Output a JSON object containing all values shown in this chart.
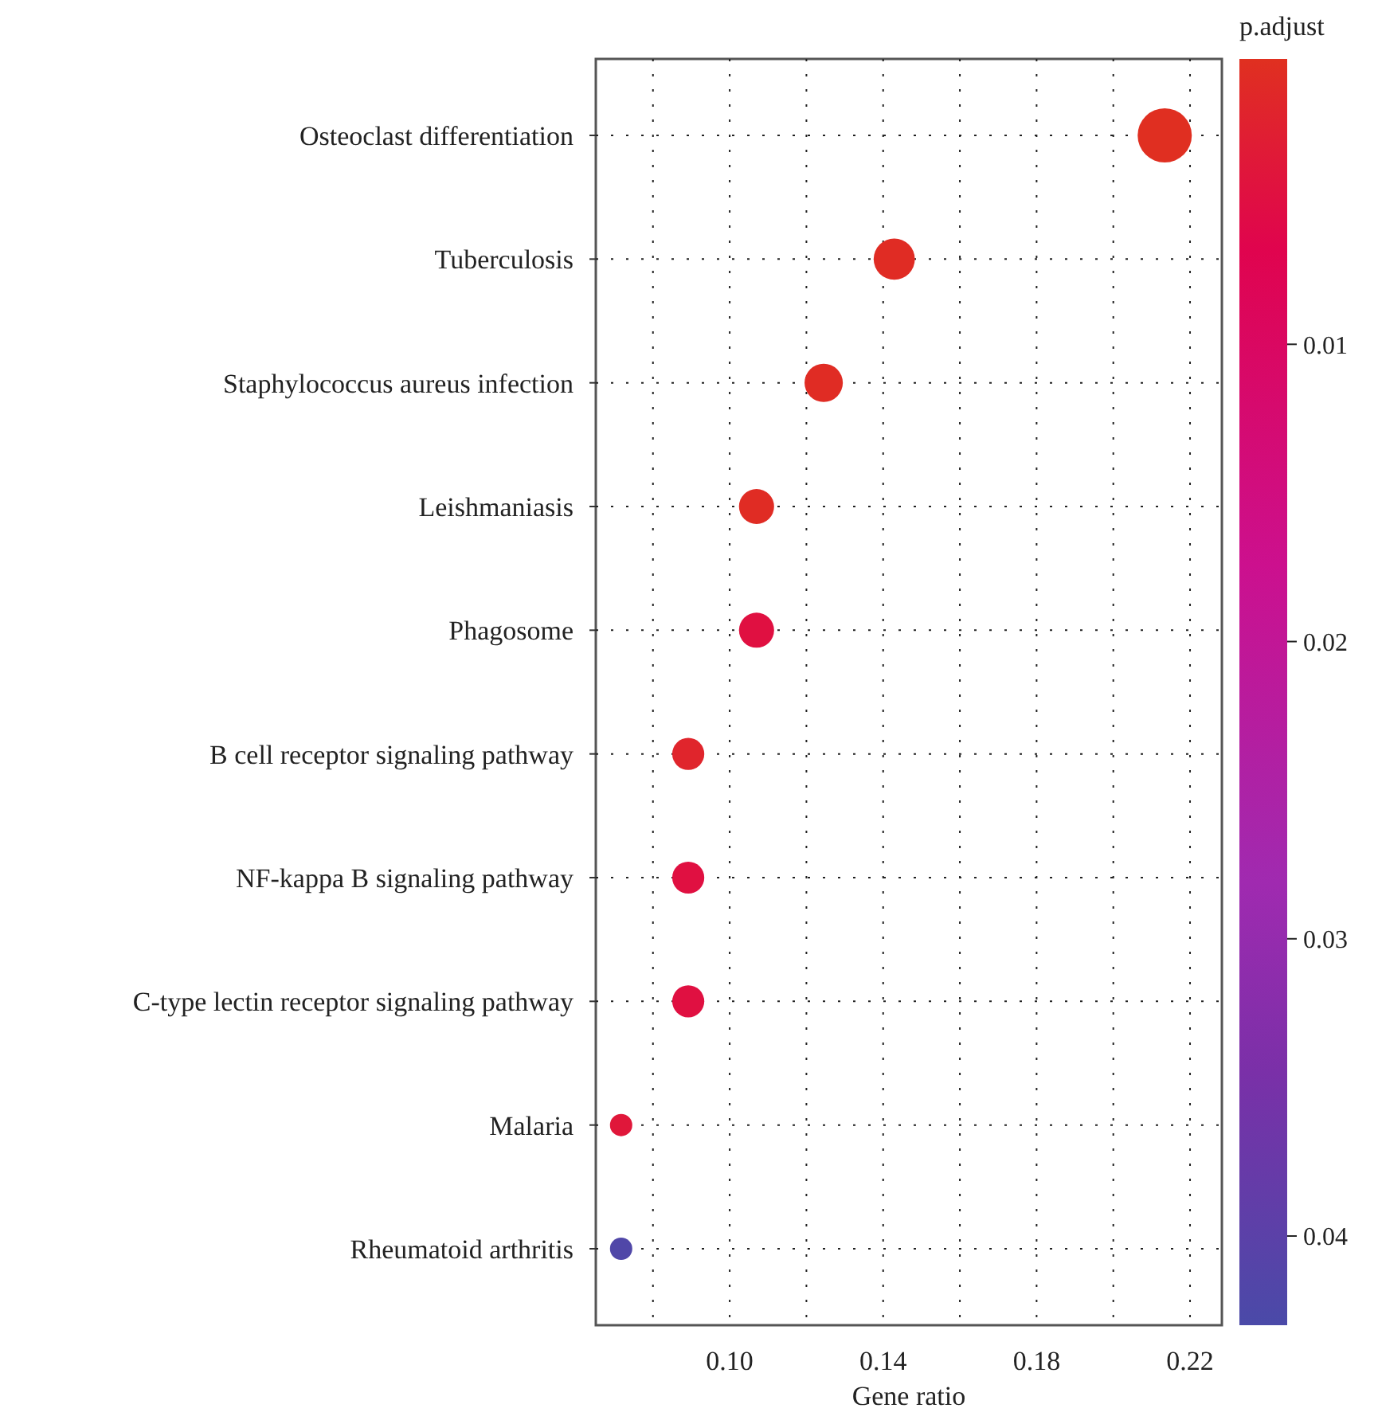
{
  "chart_data": {
    "type": "bubble",
    "orientation": "horizontal",
    "xlabel": "Gene ratio",
    "clabel": "p.adjust",
    "categories": [
      "Osteoclast differentiation",
      "Tuberculosis",
      "Staphylococcus aureus infection",
      "Leishmaniasis",
      "Phagosome",
      "B cell receptor signaling pathway",
      "NF-kappa B signaling pathway",
      "C-type lectin receptor signaling pathway",
      "Malaria",
      "Rheumatoid arthritis"
    ],
    "values": [
      0.2134,
      0.1429,
      0.1245,
      0.107,
      0.107,
      0.0892,
      0.0892,
      0.0892,
      0.0717,
      0.0717
    ],
    "sizes": [
      1,
      0.58,
      0.5,
      0.42,
      0.42,
      0.35,
      0.35,
      0.35,
      0.17,
      0.17
    ],
    "cvalues": [
      0.0005,
      0.001,
      0.001,
      0.001,
      0.005,
      0.002,
      0.005,
      0.005,
      0.004,
      0.042
    ],
    "clim": [
      0.0004,
      0.043
    ],
    "cticks": [
      0.01,
      0.02,
      0.03,
      0.04
    ],
    "xlim": [
      0.0651,
      0.2283
    ],
    "xticks": [
      {
        "value": 0.08,
        "label": null
      },
      {
        "value": 0.1,
        "label": "0.10"
      },
      {
        "value": 0.12,
        "label": null
      },
      0.14,
      {
        "value": 0.16,
        "label": null
      },
      0.18,
      {
        "value": 0.2,
        "label": null
      },
      0.22
    ],
    "grid": true
  }
}
